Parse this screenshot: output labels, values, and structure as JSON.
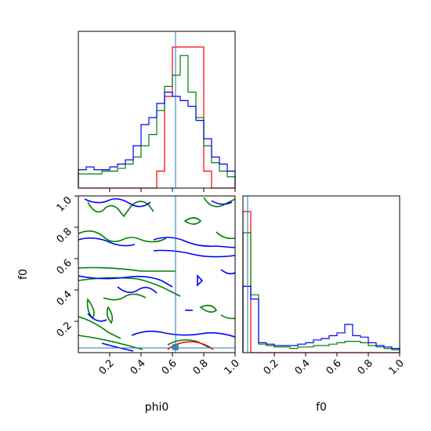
{
  "chart_data": {
    "type": "corner",
    "parameters": [
      "phi0",
      "f0"
    ],
    "xlabel_phi0": "phi0",
    "xlabel_f0": "f0",
    "ylabel_f0": "f0",
    "axis_range": [
      0,
      1
    ],
    "ticks": [
      "0.2",
      "0.4",
      "0.6",
      "0.8",
      "1.0"
    ],
    "tick_values": [
      0.2,
      0.4,
      0.6,
      0.8,
      1.0
    ],
    "truth": {
      "phi0": 0.62,
      "f0": 0.03
    },
    "colors": {
      "series_a": "#ff0000",
      "series_b": "#008000",
      "series_c": "#0000ff",
      "truth": "#1f77b4"
    },
    "hist_phi0": {
      "bin_edges": [
        0.0,
        0.05,
        0.1,
        0.15,
        0.2,
        0.25,
        0.3,
        0.35,
        0.4,
        0.45,
        0.5,
        0.55,
        0.6,
        0.65,
        0.7,
        0.75,
        0.8,
        0.85,
        0.9,
        0.95,
        1.0
      ],
      "series": [
        {
          "color": "red",
          "values": [
            0,
            0,
            0,
            0,
            0,
            0,
            0,
            0,
            0,
            0,
            0.12,
            0.65,
            1.0,
            1.0,
            1.0,
            1.0,
            0.12,
            0,
            0,
            0
          ]
        },
        {
          "color": "green",
          "values": [
            0.1,
            0.1,
            0.1,
            0.12,
            0.12,
            0.14,
            0.17,
            0.22,
            0.3,
            0.38,
            0.55,
            0.72,
            0.8,
            0.94,
            0.68,
            0.5,
            0.3,
            0.18,
            0.12,
            0.08
          ]
        },
        {
          "color": "blue",
          "values": [
            0.13,
            0.15,
            0.13,
            0.13,
            0.15,
            0.17,
            0.2,
            0.3,
            0.45,
            0.5,
            0.6,
            0.68,
            0.65,
            0.62,
            0.58,
            0.48,
            0.35,
            0.22,
            0.17,
            0.12
          ]
        }
      ]
    },
    "hist_f0": {
      "bin_edges": [
        0.0,
        0.05,
        0.1,
        0.15,
        0.2,
        0.25,
        0.3,
        0.35,
        0.4,
        0.45,
        0.5,
        0.55,
        0.6,
        0.65,
        0.7,
        0.75,
        0.8,
        0.85,
        0.9,
        0.95,
        1.0
      ],
      "series": [
        {
          "color": "red",
          "values": [
            1.0,
            0,
            0,
            0,
            0,
            0,
            0,
            0,
            0,
            0,
            0,
            0,
            0,
            0,
            0,
            0,
            0,
            0,
            0,
            0
          ]
        },
        {
          "color": "green",
          "values": [
            0.85,
            0.41,
            0.06,
            0.05,
            0.04,
            0.04,
            0.03,
            0.04,
            0.04,
            0.05,
            0.05,
            0.06,
            0.07,
            0.08,
            0.08,
            0.07,
            0.05,
            0.04,
            0.03,
            0.02
          ]
        },
        {
          "color": "blue",
          "values": [
            0.47,
            0.38,
            0.07,
            0.06,
            0.05,
            0.05,
            0.05,
            0.06,
            0.07,
            0.09,
            0.1,
            0.12,
            0.14,
            0.2,
            0.12,
            0.11,
            0.07,
            0.05,
            0.04,
            0.03
          ]
        }
      ]
    }
  }
}
